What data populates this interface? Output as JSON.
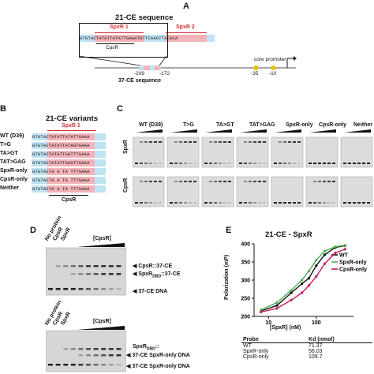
{
  "panelA": {
    "letter": "A",
    "title": "21-CE sequence",
    "spxr1": "SpxR 1",
    "spxr2": "SpxR 2",
    "cpsr": "CpsR",
    "sequence": "GTGTACTATATTATATTGAAATGTTCAAGTTACACA",
    "ce37": "37-CE sequence",
    "pos_left": "-209",
    "pos_right": "-172",
    "core_promoter": "core promoter",
    "pos_35": "-35",
    "pos_10": "-10"
  },
  "panelB": {
    "letter": "B",
    "title": "21-CE variants",
    "spxr1": "SpxR 1",
    "cpsr": "CpsR",
    "variants": [
      {
        "name": "WT (D39)",
        "seq": "GTGTACTATATTATATTGAAA"
      },
      {
        "name": "T>G",
        "seq": "GTGTACTATATTATAGTGAAA"
      },
      {
        "name": "TA>GT",
        "seq": "GTGTACTATATTAGTTTGAAA"
      },
      {
        "name": "TAT>GAG",
        "seq": "GTGTACTATATTGAGTTGAAA"
      },
      {
        "name": "SpxR-only",
        "seq": "GTGTACTA A TA TTTGAAA"
      },
      {
        "name": "CpsR-only",
        "seq": "GTGTACTA A TA TTTGAAA"
      },
      {
        "name": "Neither",
        "seq": "GTGTACTA A TA TTTGAAA"
      }
    ]
  },
  "panelC": {
    "letter": "C",
    "row1": "SpxR",
    "row2": "CpsR",
    "columns": [
      "WT (D39)",
      "T>G",
      "TA>GT",
      "TAT>GAG",
      "SpxR-only",
      "CpsR-only",
      "Neither"
    ]
  },
  "panelD": {
    "letter": "D",
    "top_lanes": [
      "No protein",
      "CpsR",
      "SpxR"
    ],
    "top_conc": "[CpsR]",
    "top_labels": [
      "CpsR::37-CE",
      "SpxR",
      "37-CE DNA"
    ],
    "dbd_sub": "DBD",
    "top_dbd_suffix": "::37-CE",
    "bottom_lanes": [
      "No protein",
      "CpsR",
      "SpxR"
    ],
    "bottom_conc": "[CpsR]",
    "bottom_label_1a": "SpxR",
    "bottom_label_1b": "::",
    "bottom_label_2": "37-CE SpxR-only DNA",
    "bottom_label_3": "37-CE SpxR-only DNA"
  },
  "panelE": {
    "letter": "E",
    "title": "21-CE - SpxR",
    "ylabel": "Polarization (mP)",
    "xlabel": "[SpxR] (nM)",
    "table": {
      "headers": [
        "Probe",
        "Kd (nmol)"
      ],
      "rows": [
        [
          "WT",
          "71.37"
        ],
        [
          "SpxR-only",
          "56.03"
        ],
        [
          "CpsR-only",
          "109.7"
        ]
      ]
    }
  },
  "chart_data": {
    "type": "line",
    "title": "21-CE - SpxR",
    "xlabel": "[SpxR] (nM)",
    "ylabel": "Polarization (mP)",
    "xscale": "log",
    "xlim": [
      5,
      600
    ],
    "ylim": [
      200,
      400
    ],
    "yticks": [
      200,
      250,
      300,
      350,
      400
    ],
    "xticks": [
      10,
      100
    ],
    "legend": "top-right",
    "series": [
      {
        "name": "WT",
        "color": "#111111",
        "kd": 71.37,
        "x": [
          7,
          15,
          30,
          50,
          70,
          100,
          150,
          250,
          400
        ],
        "y": [
          215,
          230,
          265,
          290,
          305,
          340,
          370,
          390,
          395
        ]
      },
      {
        "name": "SpxR-only",
        "color": "#4caf50",
        "kd": 56.03,
        "x": [
          7,
          15,
          30,
          50,
          70,
          100,
          150,
          250,
          400
        ],
        "y": [
          218,
          238,
          272,
          300,
          325,
          355,
          380,
          392,
          396
        ]
      },
      {
        "name": "CpsR-only",
        "color": "#c2185b",
        "kd": 109.7,
        "x": [
          7,
          15,
          30,
          50,
          70,
          100,
          150,
          250,
          400
        ],
        "y": [
          212,
          222,
          245,
          265,
          285,
          310,
          345,
          375,
          385
        ]
      }
    ]
  }
}
